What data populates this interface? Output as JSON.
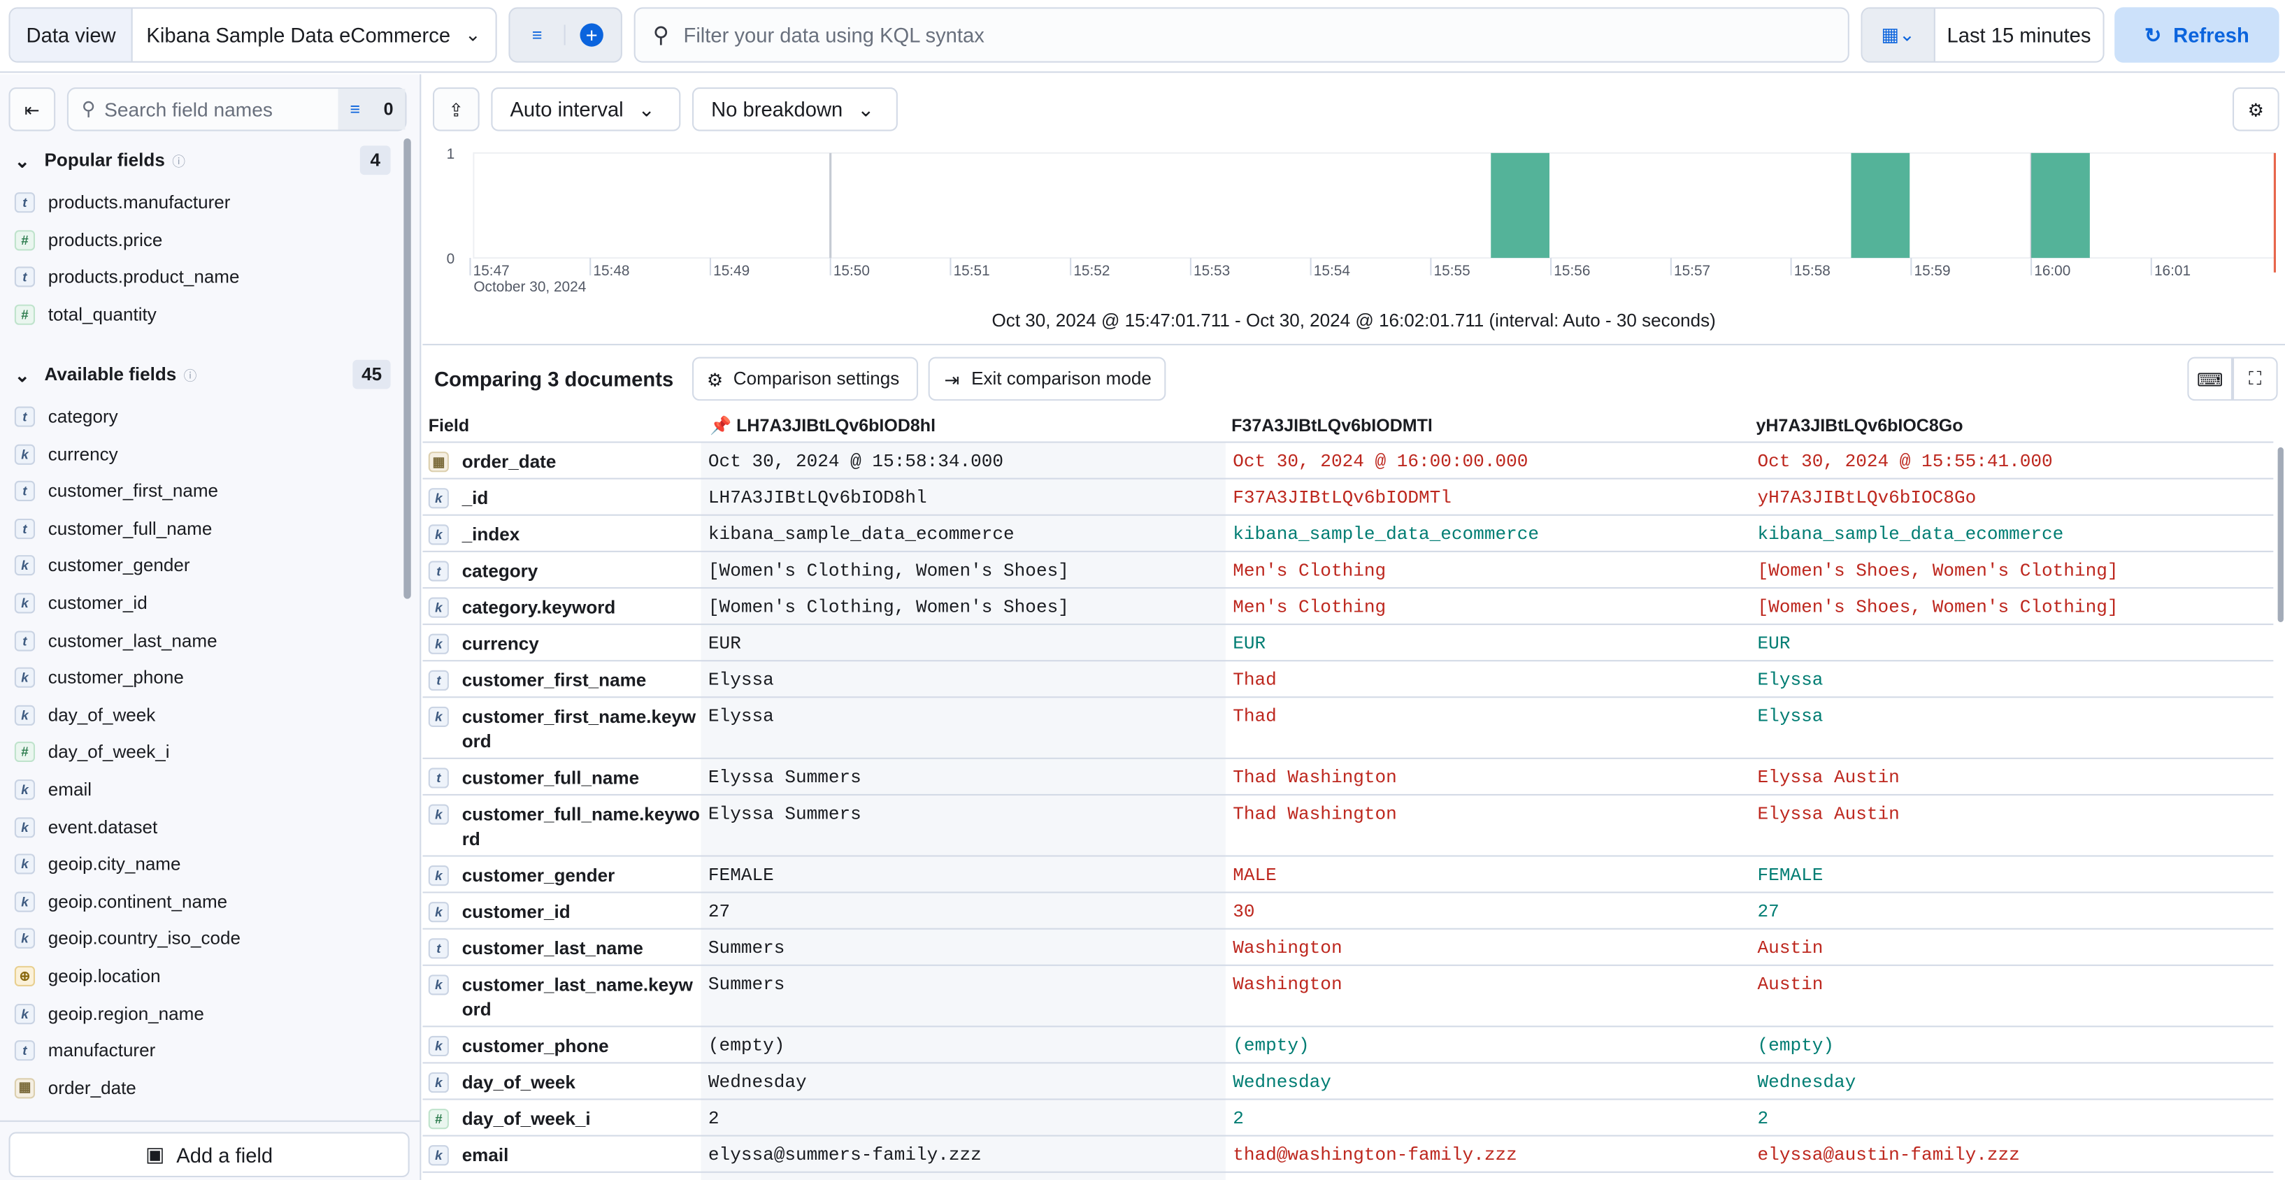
{
  "topbar": {
    "data_view_label": "Data view",
    "data_view_value": "Kibana Sample Data eCommerce",
    "query_placeholder": "Filter your data using KQL syntax",
    "time_range": "Last 15 minutes",
    "refresh_label": "Refresh"
  },
  "sidebar": {
    "search_placeholder": "Search field names",
    "filter_count": "0",
    "popular_title": "Popular fields",
    "popular_count": "4",
    "available_title": "Available fields",
    "available_count": "45",
    "add_field_label": "Add a field",
    "popular": [
      {
        "name": "products.manufacturer",
        "type": "t"
      },
      {
        "name": "products.price",
        "type": "#"
      },
      {
        "name": "products.product_name",
        "type": "t"
      },
      {
        "name": "total_quantity",
        "type": "#"
      }
    ],
    "available": [
      {
        "name": "category",
        "type": "t"
      },
      {
        "name": "currency",
        "type": "k"
      },
      {
        "name": "customer_first_name",
        "type": "t"
      },
      {
        "name": "customer_full_name",
        "type": "t"
      },
      {
        "name": "customer_gender",
        "type": "k"
      },
      {
        "name": "customer_id",
        "type": "k"
      },
      {
        "name": "customer_last_name",
        "type": "t"
      },
      {
        "name": "customer_phone",
        "type": "k"
      },
      {
        "name": "day_of_week",
        "type": "k"
      },
      {
        "name": "day_of_week_i",
        "type": "#"
      },
      {
        "name": "email",
        "type": "k"
      },
      {
        "name": "event.dataset",
        "type": "k"
      },
      {
        "name": "geoip.city_name",
        "type": "k"
      },
      {
        "name": "geoip.continent_name",
        "type": "k"
      },
      {
        "name": "geoip.country_iso_code",
        "type": "k"
      },
      {
        "name": "geoip.location",
        "type": "geo"
      },
      {
        "name": "geoip.region_name",
        "type": "k"
      },
      {
        "name": "manufacturer",
        "type": "t"
      },
      {
        "name": "order_date",
        "type": "date"
      }
    ]
  },
  "histogram": {
    "interval_label": "Auto interval",
    "breakdown_label": "No breakdown",
    "y_ticks": [
      "1",
      "0"
    ],
    "x_ticks": [
      "15:47",
      "15:48",
      "15:49",
      "15:50",
      "15:51",
      "15:52",
      "15:53",
      "15:54",
      "15:55",
      "15:56",
      "15:57",
      "15:58",
      "15:59",
      "16:00",
      "16:01"
    ],
    "date_label": "October 30, 2024",
    "range_text": "Oct 30, 2024 @ 15:47:01.711 - Oct 30, 2024 @ 16:02:01.711 (interval: Auto - 30 seconds)",
    "chart_data": {
      "type": "bar",
      "x_unit": "time",
      "bars": [
        {
          "start": "15:55:30",
          "end": "15:56:00",
          "count": 1
        },
        {
          "start": "15:58:30",
          "end": "15:59:00",
          "count": 1
        },
        {
          "start": "16:00:00",
          "end": "16:00:30",
          "count": 1
        }
      ],
      "ylim": [
        0,
        1
      ],
      "bar_color": "#54b399"
    }
  },
  "comparison": {
    "title": "Comparing 3 documents",
    "settings_label": "Comparison settings",
    "exit_label": "Exit comparison mode",
    "field_header": "Field",
    "docs": [
      "LH7A3JIBtLQv6bIOD8hl",
      "F37A3JIBtLQv6bIODMTl",
      "yH7A3JIBtLQv6bIOC8Go"
    ],
    "rows": [
      {
        "field": "order_date",
        "type": "date",
        "values": [
          "Oct 30, 2024 @ 15:58:34.000",
          "Oct 30, 2024 @ 16:00:00.000",
          "Oct 30, 2024 @ 15:55:41.000"
        ],
        "status": [
          "diff",
          "diff"
        ]
      },
      {
        "field": "_id",
        "type": "k",
        "values": [
          "LH7A3JIBtLQv6bIOD8hl",
          "F37A3JIBtLQv6bIODMTl",
          "yH7A3JIBtLQv6bIOC8Go"
        ],
        "status": [
          "diff",
          "diff"
        ]
      },
      {
        "field": "_index",
        "type": "k",
        "values": [
          "kibana_sample_data_ecommerce",
          "kibana_sample_data_ecommerce",
          "kibana_sample_data_ecommerce"
        ],
        "status": [
          "same",
          "same"
        ]
      },
      {
        "field": "category",
        "type": "t",
        "values": [
          "[Women's Clothing, Women's Shoes]",
          "Men's Clothing",
          "[Women's Shoes, Women's Clothing]"
        ],
        "status": [
          "diff",
          "diff"
        ]
      },
      {
        "field": "category.keyword",
        "type": "k",
        "values": [
          "[Women's Clothing, Women's Shoes]",
          "Men's Clothing",
          "[Women's Shoes, Women's Clothing]"
        ],
        "status": [
          "diff",
          "diff"
        ]
      },
      {
        "field": "currency",
        "type": "k",
        "values": [
          "EUR",
          "EUR",
          "EUR"
        ],
        "status": [
          "same",
          "same"
        ]
      },
      {
        "field": "customer_first_name",
        "type": "t",
        "values": [
          "Elyssa",
          "Thad",
          "Elyssa"
        ],
        "status": [
          "diff",
          "same"
        ]
      },
      {
        "field": "customer_first_name.keyword",
        "type": "k",
        "values": [
          "Elyssa",
          "Thad",
          "Elyssa"
        ],
        "status": [
          "diff",
          "same"
        ],
        "tall": true
      },
      {
        "field": "customer_full_name",
        "type": "t",
        "values": [
          "Elyssa Summers",
          "Thad Washington",
          "Elyssa Austin"
        ],
        "status": [
          "diff",
          "diff"
        ]
      },
      {
        "field": "customer_full_name.keyword",
        "type": "k",
        "values": [
          "Elyssa Summers",
          "Thad Washington",
          "Elyssa Austin"
        ],
        "status": [
          "diff",
          "diff"
        ],
        "tall": true
      },
      {
        "field": "customer_gender",
        "type": "k",
        "values": [
          "FEMALE",
          "MALE",
          "FEMALE"
        ],
        "status": [
          "diff",
          "same"
        ]
      },
      {
        "field": "customer_id",
        "type": "k",
        "values": [
          "27",
          "30",
          "27"
        ],
        "status": [
          "diff",
          "same"
        ]
      },
      {
        "field": "customer_last_name",
        "type": "t",
        "values": [
          "Summers",
          "Washington",
          "Austin"
        ],
        "status": [
          "diff",
          "diff"
        ]
      },
      {
        "field": "customer_last_name.keyword",
        "type": "k",
        "values": [
          "Summers",
          "Washington",
          "Austin"
        ],
        "status": [
          "diff",
          "diff"
        ],
        "tall": true
      },
      {
        "field": "customer_phone",
        "type": "k",
        "values": [
          "(empty)",
          "(empty)",
          "(empty)"
        ],
        "status": [
          "same",
          "same"
        ]
      },
      {
        "field": "day_of_week",
        "type": "k",
        "values": [
          "Wednesday",
          "Wednesday",
          "Wednesday"
        ],
        "status": [
          "same",
          "same"
        ]
      },
      {
        "field": "day_of_week_i",
        "type": "#",
        "values": [
          "2",
          "2",
          "2"
        ],
        "status": [
          "same",
          "same"
        ]
      },
      {
        "field": "email",
        "type": "k",
        "values": [
          "elyssa@summers-family.zzz",
          "thad@washington-family.zzz",
          "elyssa@austin-family.zzz"
        ],
        "status": [
          "diff",
          "diff"
        ]
      }
    ]
  }
}
